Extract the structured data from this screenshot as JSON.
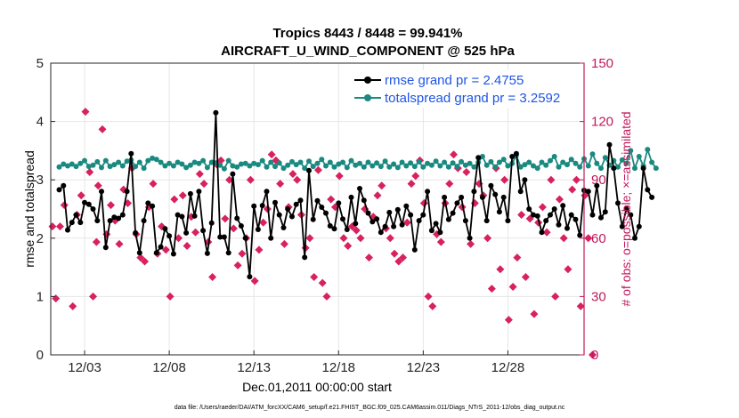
{
  "chart_data": {
    "type": "line",
    "title_line1": "Tropics 8443 / 8448 = 99.941%",
    "title_line2": "AIRCRAFT_U_WIND_COMPONENT @ 525 hPa",
    "xlabel": "Dec.01,2011 00:00:00 start",
    "ylabel_left": "rmse and totalspread",
    "ylabel_right": "# of obs: o=possible; ×=assimilated",
    "ylim_left": [
      0,
      5
    ],
    "ylim_right": [
      0,
      150
    ],
    "xlim_days": [
      0,
      31.5
    ],
    "x_ticks": [
      {
        "day": 2,
        "label": "12/03"
      },
      {
        "day": 7,
        "label": "12/08"
      },
      {
        "day": 12,
        "label": "12/13"
      },
      {
        "day": 17,
        "label": "12/18"
      },
      {
        "day": 22,
        "label": "12/23"
      },
      {
        "day": 27,
        "label": "12/28"
      }
    ],
    "y_ticks_left": [
      "0",
      "1",
      "2",
      "3",
      "4",
      "5"
    ],
    "y_ticks_right": [
      "0",
      "30",
      "60",
      "90",
      "120",
      "150"
    ],
    "footer": "data file: /Users/raeder/DAI/ATM_forcXX/CAM6_setup/f.e21.FHIST_BGC.f09_025.CAM6assim.011/Diags_NTrS_2011-12/obs_diag_output.nc",
    "colors": {
      "rmse": "#000000",
      "spread": "#1a8a80",
      "obs": "#d8215e",
      "right_axis": "#c0195b",
      "legend_text": "#1f55e6"
    },
    "x_step_days": 0.25,
    "series": [
      {
        "name": "rmse grand pr = 2.4755",
        "key": "rmse",
        "values": [
          2.83,
          2.9,
          2.14,
          2.27,
          2.4,
          2.27,
          2.61,
          2.58,
          2.5,
          2.3,
          2.8,
          1.84,
          2.3,
          2.36,
          2.34,
          2.4,
          2.8,
          3.45,
          2.09,
          1.75,
          2.3,
          2.6,
          2.55,
          1.75,
          1.85,
          2.16,
          2.04,
          1.73,
          2.4,
          2.37,
          2.09,
          2.76,
          2.38,
          2.8,
          2.13,
          1.74,
          2.26,
          4.15,
          2.02,
          2.02,
          1.75,
          3.1,
          2.34,
          2.21,
          2.0,
          1.34,
          2.55,
          2.15,
          2.56,
          2.8,
          2.0,
          2.61,
          2.4,
          2.18,
          2.5,
          2.37,
          2.58,
          2.65,
          1.67,
          3.16,
          2.32,
          2.64,
          2.53,
          2.43,
          2.21,
          2.16,
          2.6,
          2.33,
          2.15,
          2.7,
          2.25,
          2.85,
          2.65,
          2.43,
          2.28,
          2.33,
          2.1,
          2.2,
          2.44,
          2.2,
          2.49,
          2.23,
          2.55,
          2.4,
          1.8,
          2.3,
          2.4,
          2.8,
          2.13,
          2.25,
          2.1,
          2.7,
          2.32,
          2.43,
          2.6,
          2.7,
          2.3,
          2.0,
          2.8,
          3.38,
          2.7,
          2.3,
          2.9,
          2.75,
          2.45,
          2.7,
          2.3,
          3.4,
          3.45,
          2.8,
          3.0,
          2.5,
          2.4,
          2.38,
          2.1,
          2.3,
          2.4,
          2.5,
          2.23,
          2.56,
          2.17,
          2.4,
          2.32,
          2.05,
          2.82,
          2.8,
          2.4,
          2.9,
          2.35,
          2.45,
          3.6,
          3.2,
          2.6,
          2.2,
          2.5,
          2.4,
          2.0,
          2.2,
          3.2,
          2.83,
          2.7
        ]
      },
      {
        "name": "totalspread grand pr = 3.2592",
        "key": "spread",
        "values": [
          3.22,
          3.27,
          3.24,
          3.27,
          3.23,
          3.28,
          3.33,
          3.23,
          3.25,
          3.31,
          3.21,
          3.33,
          3.23,
          3.26,
          3.3,
          3.24,
          3.32,
          3.34,
          3.23,
          3.3,
          3.2,
          3.33,
          3.37,
          3.35,
          3.3,
          3.24,
          3.28,
          3.24,
          3.3,
          3.27,
          3.21,
          3.25,
          3.3,
          3.28,
          3.33,
          3.21,
          3.3,
          3.29,
          3.25,
          3.19,
          3.33,
          3.24,
          3.22,
          3.27,
          3.28,
          3.24,
          3.28,
          3.26,
          3.33,
          3.22,
          3.3,
          3.23,
          3.29,
          3.2,
          3.25,
          3.31,
          3.26,
          3.3,
          3.2,
          3.32,
          3.23,
          3.28,
          3.35,
          3.24,
          3.3,
          3.22,
          3.27,
          3.3,
          3.21,
          3.33,
          3.25,
          3.28,
          3.22,
          3.3,
          3.24,
          3.29,
          3.23,
          3.32,
          3.22,
          3.27,
          3.21,
          3.3,
          3.24,
          3.29,
          3.23,
          3.31,
          3.22,
          3.28,
          3.25,
          3.32,
          3.24,
          3.3,
          3.22,
          3.29,
          3.23,
          3.31,
          3.25,
          3.28,
          3.22,
          3.3,
          3.4,
          3.25,
          3.31,
          3.22,
          3.3,
          3.35,
          3.24,
          3.28,
          3.42,
          3.22,
          3.26,
          3.3,
          3.24,
          3.2,
          3.3,
          3.25,
          3.33,
          3.4,
          3.22,
          3.3,
          3.26,
          3.35,
          3.28,
          3.22,
          3.36,
          3.24,
          3.44,
          3.28,
          3.2,
          3.38,
          3.25,
          3.33,
          3.22,
          3.34,
          3.28,
          3.5,
          3.2,
          3.4,
          3.24,
          3.52,
          3.3,
          3.2
        ]
      }
    ],
    "obs_counts": [
      {
        "day": 0.1,
        "value": 66
      },
      {
        "day": 0.3,
        "value": 29
      },
      {
        "day": 0.55,
        "value": 66
      },
      {
        "day": 0.8,
        "value": 77
      },
      {
        "day": 1.3,
        "value": 25
      },
      {
        "day": 1.55,
        "value": 72
      },
      {
        "day": 1.8,
        "value": 82
      },
      {
        "day": 2.05,
        "value": 125
      },
      {
        "day": 2.3,
        "value": 94
      },
      {
        "day": 2.5,
        "value": 30
      },
      {
        "day": 2.7,
        "value": 58
      },
      {
        "day": 2.8,
        "value": 87
      },
      {
        "day": 3.05,
        "value": 116
      },
      {
        "day": 3.3,
        "value": 62
      },
      {
        "day": 3.55,
        "value": 77
      },
      {
        "day": 3.8,
        "value": 69
      },
      {
        "day": 4.05,
        "value": 57
      },
      {
        "day": 4.3,
        "value": 85
      },
      {
        "day": 4.55,
        "value": 78
      },
      {
        "day": 4.8,
        "value": 96
      },
      {
        "day": 5.05,
        "value": 62
      },
      {
        "day": 5.3,
        "value": 50
      },
      {
        "day": 5.55,
        "value": 48
      },
      {
        "day": 5.8,
        "value": 76
      },
      {
        "day": 6.05,
        "value": 88
      },
      {
        "day": 6.3,
        "value": 52
      },
      {
        "day": 6.55,
        "value": 66
      },
      {
        "day": 6.8,
        "value": 54
      },
      {
        "day": 7.05,
        "value": 30
      },
      {
        "day": 7.3,
        "value": 80
      },
      {
        "day": 7.55,
        "value": 60
      },
      {
        "day": 7.8,
        "value": 82
      },
      {
        "day": 8.05,
        "value": 56
      },
      {
        "day": 8.3,
        "value": 71
      },
      {
        "day": 8.55,
        "value": 63
      },
      {
        "day": 8.8,
        "value": 93
      },
      {
        "day": 9.05,
        "value": 88
      },
      {
        "day": 9.3,
        "value": 58
      },
      {
        "day": 9.55,
        "value": 40
      },
      {
        "day": 9.8,
        "value": 98
      },
      {
        "day": 10.05,
        "value": 100
      },
      {
        "day": 10.3,
        "value": 70
      },
      {
        "day": 10.55,
        "value": 90
      },
      {
        "day": 10.8,
        "value": 65
      },
      {
        "day": 11.05,
        "value": 46
      },
      {
        "day": 11.3,
        "value": 52
      },
      {
        "day": 11.55,
        "value": 60
      },
      {
        "day": 11.8,
        "value": 90
      },
      {
        "day": 12.05,
        "value": 38
      },
      {
        "day": 12.3,
        "value": 54
      },
      {
        "day": 12.55,
        "value": 68
      },
      {
        "day": 12.8,
        "value": 75
      },
      {
        "day": 13.05,
        "value": 103
      },
      {
        "day": 13.3,
        "value": 100
      },
      {
        "day": 13.55,
        "value": 88
      },
      {
        "day": 13.8,
        "value": 57
      },
      {
        "day": 14.05,
        "value": 76
      },
      {
        "day": 14.3,
        "value": 93
      },
      {
        "day": 14.55,
        "value": 90
      },
      {
        "day": 14.8,
        "value": 72
      },
      {
        "day": 15.05,
        "value": 55
      },
      {
        "day": 15.3,
        "value": 60
      },
      {
        "day": 15.55,
        "value": 40
      },
      {
        "day": 15.8,
        "value": 95
      },
      {
        "day": 16.05,
        "value": 37
      },
      {
        "day": 16.3,
        "value": 30
      },
      {
        "day": 16.55,
        "value": 80
      },
      {
        "day": 16.8,
        "value": 76
      },
      {
        "day": 17.05,
        "value": 92
      },
      {
        "day": 17.3,
        "value": 60
      },
      {
        "day": 17.55,
        "value": 56
      },
      {
        "day": 17.8,
        "value": 66
      },
      {
        "day": 18.05,
        "value": 64
      },
      {
        "day": 18.3,
        "value": 60
      },
      {
        "day": 18.55,
        "value": 75
      },
      {
        "day": 18.8,
        "value": 50
      },
      {
        "day": 19.05,
        "value": 71
      },
      {
        "day": 19.3,
        "value": 82
      },
      {
        "day": 19.55,
        "value": 87
      },
      {
        "day": 19.8,
        "value": 65
      },
      {
        "day": 20.05,
        "value": 60
      },
      {
        "day": 20.3,
        "value": 52
      },
      {
        "day": 20.55,
        "value": 48
      },
      {
        "day": 20.8,
        "value": 50
      },
      {
        "day": 21.05,
        "value": 68
      },
      {
        "day": 21.3,
        "value": 88
      },
      {
        "day": 21.55,
        "value": 92
      },
      {
        "day": 21.8,
        "value": 100
      },
      {
        "day": 22.05,
        "value": 78
      },
      {
        "day": 22.3,
        "value": 30
      },
      {
        "day": 22.55,
        "value": 25
      },
      {
        "day": 22.8,
        "value": 62
      },
      {
        "day": 23.05,
        "value": 58
      },
      {
        "day": 23.3,
        "value": 78
      },
      {
        "day": 23.55,
        "value": 88
      },
      {
        "day": 23.8,
        "value": 103
      },
      {
        "day": 24.05,
        "value": 96
      },
      {
        "day": 24.3,
        "value": 76
      },
      {
        "day": 24.55,
        "value": 94
      },
      {
        "day": 24.8,
        "value": 57
      },
      {
        "day": 25.05,
        "value": 78
      },
      {
        "day": 25.3,
        "value": 88
      },
      {
        "day": 25.55,
        "value": 82
      },
      {
        "day": 25.8,
        "value": 60
      },
      {
        "day": 26.05,
        "value": 34
      },
      {
        "day": 26.3,
        "value": 96
      },
      {
        "day": 26.55,
        "value": 44
      },
      {
        "day": 26.8,
        "value": 90
      },
      {
        "day": 27.05,
        "value": 18
      },
      {
        "day": 27.3,
        "value": 35
      },
      {
        "day": 27.55,
        "value": 50
      },
      {
        "day": 27.8,
        "value": 72
      },
      {
        "day": 28.05,
        "value": 40
      },
      {
        "day": 28.3,
        "value": 70
      },
      {
        "day": 28.55,
        "value": 21
      },
      {
        "day": 28.8,
        "value": 68
      },
      {
        "day": 29.05,
        "value": 76
      },
      {
        "day": 29.3,
        "value": 63
      },
      {
        "day": 29.55,
        "value": 90
      },
      {
        "day": 29.8,
        "value": 30
      },
      {
        "day": 30.05,
        "value": 80
      },
      {
        "day": 30.3,
        "value": 60
      },
      {
        "day": 30.55,
        "value": 44
      },
      {
        "day": 30.8,
        "value": 85
      },
      {
        "day": 31.05,
        "value": 90
      },
      {
        "day": 31.3,
        "value": 25
      },
      {
        "day": 31.55,
        "value": 82
      },
      {
        "day": 31.75,
        "value": 60
      },
      {
        "day": 32.0,
        "value": 0
      }
    ]
  }
}
